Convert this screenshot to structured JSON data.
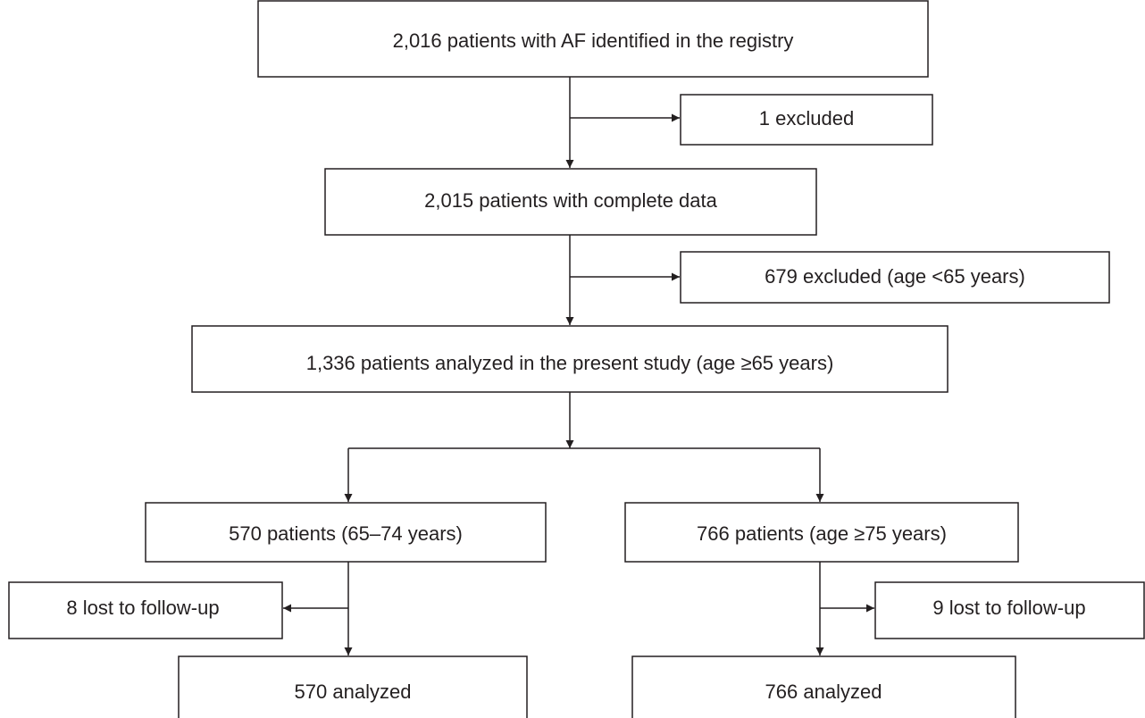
{
  "nodes": [
    {
      "label": "2,016 patients with AF identified in the registry"
    },
    {
      "label": "1 excluded"
    },
    {
      "label": "2,015 patients with complete data"
    },
    {
      "label": "679 excluded (age <65 years)"
    },
    {
      "label": "1,336 patients analyzed in the present study (age ≥65 years)"
    },
    {
      "label": "570 patients (65–74 years)"
    },
    {
      "label": "766 patients (age ≥75 years)"
    },
    {
      "label": "8 lost to follow-up"
    },
    {
      "label": "9 lost to follow-up"
    },
    {
      "label": "570 analyzed"
    },
    {
      "label": "766 analyzed"
    }
  ]
}
